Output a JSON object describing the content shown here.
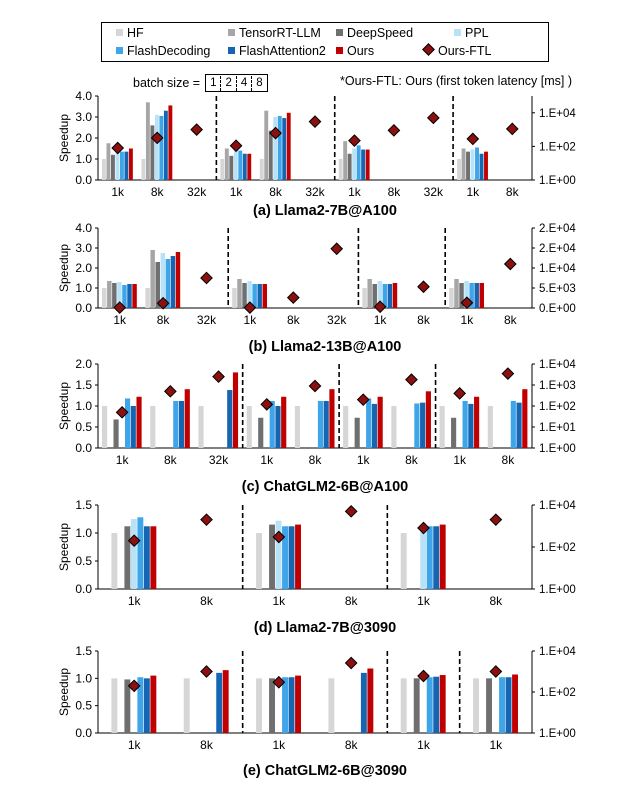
{
  "legend": [
    {
      "name": "HF",
      "color": "#d6d6d6",
      "marker": "square"
    },
    {
      "name": "TensorRT-LLM",
      "color": "#a6a6a6",
      "marker": "square"
    },
    {
      "name": "DeepSpeed",
      "color": "#6f6f6f",
      "marker": "square"
    },
    {
      "name": "PPL",
      "color": "#b8e2f8",
      "marker": "square"
    },
    {
      "name": "FlashDecoding",
      "color": "#3ea5e8",
      "marker": "square"
    },
    {
      "name": "FlashAttention2",
      "color": "#1565b3",
      "marker": "square"
    },
    {
      "name": "Ours",
      "color": "#c00000",
      "marker": "square"
    },
    {
      "name": "Ours-FTL",
      "color": "#8b1010",
      "marker": "diamond"
    }
  ],
  "batch_size": {
    "label": "batch size =",
    "values": [
      "1",
      "2",
      "4",
      "8"
    ]
  },
  "note": "*Ours-FTL: Ours (first token latency [ms] )",
  "chart_data": [
    {
      "type": "bar",
      "title": "(a) Llama2-7B@A100",
      "ylabel": "Speedup",
      "ylim": [
        0,
        4
      ],
      "y_ticks": [
        "0.0",
        "1.0",
        "2.0",
        "3.0",
        "4.0"
      ],
      "y2_scale": "log",
      "y2_range": [
        1,
        100000
      ],
      "y2_ticks": [
        {
          "value": 1,
          "label": "1.E+00"
        },
        {
          "value": 100,
          "label": "1.E+02"
        },
        {
          "value": 10000,
          "label": "1.E+04"
        }
      ],
      "categories": [
        "1k",
        "8k",
        "32k",
        "1k",
        "8k",
        "32k",
        "1k",
        "8k",
        "32k",
        "1k",
        "8k"
      ],
      "group_batch": [
        "1",
        "1",
        "1",
        "2",
        "2",
        "2",
        "4",
        "4",
        "4",
        "8",
        "8"
      ],
      "series": [
        {
          "name": "HF",
          "values": [
            1.0,
            1.0,
            null,
            1.0,
            1.0,
            null,
            1.0,
            null,
            null,
            1.0,
            null
          ]
        },
        {
          "name": "TensorRT-LLM",
          "values": [
            1.75,
            3.7,
            null,
            1.5,
            3.3,
            null,
            1.85,
            null,
            null,
            1.5,
            null
          ]
        },
        {
          "name": "DeepSpeed",
          "values": [
            1.2,
            2.6,
            null,
            1.15,
            2.35,
            null,
            1.25,
            null,
            null,
            1.35,
            null
          ]
        },
        {
          "name": "PPL",
          "values": [
            1.45,
            3.1,
            null,
            1.55,
            3.0,
            null,
            1.5,
            null,
            null,
            1.45,
            null
          ]
        },
        {
          "name": "FlashDecoding",
          "values": [
            1.35,
            3.05,
            null,
            1.4,
            3.05,
            null,
            1.65,
            null,
            null,
            1.55,
            null
          ]
        },
        {
          "name": "FlashAttention2",
          "values": [
            1.35,
            3.3,
            null,
            1.25,
            2.95,
            null,
            1.45,
            null,
            null,
            1.25,
            null
          ]
        },
        {
          "name": "Ours",
          "values": [
            1.5,
            3.55,
            null,
            1.25,
            3.2,
            null,
            1.45,
            null,
            null,
            1.35,
            null
          ]
        },
        {
          "name": "Ours-FTL",
          "axis": "secondary",
          "values": [
            80,
            320,
            1000,
            110,
            620,
            3000,
            220,
            900,
            5000,
            280,
            1100
          ]
        }
      ]
    },
    {
      "type": "bar",
      "title": "(b) Llama2-13B@A100",
      "ylabel": "Speedup",
      "ylim": [
        0,
        4
      ],
      "y_ticks": [
        "0.0",
        "1.0",
        "2.0",
        "3.0",
        "4.0"
      ],
      "y2_scale": "linear",
      "y2_range": [
        0,
        20000
      ],
      "y2_ticks": [
        {
          "value": 0,
          "label": "0.E+00"
        },
        {
          "value": 5000,
          "label": "5.E+03"
        },
        {
          "value": 10000,
          "label": "1.E+04"
        },
        {
          "value": 15000,
          "label": "2.E+04"
        },
        {
          "value": 20000,
          "label": "2.E+04"
        }
      ],
      "categories": [
        "1k",
        "8k",
        "32k",
        "1k",
        "8k",
        "32k",
        "1k",
        "8k",
        "1k",
        "8k"
      ],
      "group_batch": [
        "1",
        "1",
        "1",
        "2",
        "2",
        "2",
        "4",
        "4",
        "8",
        "8"
      ],
      "series": [
        {
          "name": "HF",
          "values": [
            1.0,
            1.0,
            null,
            1.0,
            null,
            null,
            1.0,
            null,
            1.0,
            null
          ]
        },
        {
          "name": "TensorRT-LLM",
          "values": [
            1.35,
            2.9,
            null,
            1.45,
            null,
            null,
            1.45,
            null,
            1.45,
            null
          ]
        },
        {
          "name": "DeepSpeed",
          "values": [
            1.25,
            2.3,
            null,
            1.25,
            null,
            null,
            1.2,
            null,
            1.25,
            null
          ]
        },
        {
          "name": "PPL",
          "values": [
            1.3,
            2.75,
            null,
            1.35,
            null,
            null,
            1.35,
            null,
            1.35,
            null
          ]
        },
        {
          "name": "FlashDecoding",
          "values": [
            1.15,
            2.45,
            null,
            1.2,
            null,
            null,
            1.2,
            null,
            1.25,
            null
          ]
        },
        {
          "name": "FlashAttention2",
          "values": [
            1.2,
            2.6,
            null,
            1.2,
            null,
            null,
            1.2,
            null,
            1.25,
            null
          ]
        },
        {
          "name": "Ours",
          "values": [
            1.2,
            2.8,
            null,
            1.2,
            null,
            null,
            1.25,
            null,
            1.25,
            null
          ]
        },
        {
          "name": "Ours-FTL",
          "axis": "secondary",
          "values": [
            100,
            1200,
            7500,
            100,
            2600,
            14800,
            300,
            5300,
            1300,
            11000
          ]
        }
      ]
    },
    {
      "type": "bar",
      "title": "(c) ChatGLM2-6B@A100",
      "ylabel": "Speedup",
      "ylim": [
        0,
        2
      ],
      "y_ticks": [
        "0.0",
        "0.5",
        "1.0",
        "1.5",
        "2.0"
      ],
      "y2_scale": "log",
      "y2_range": [
        1,
        10000
      ],
      "y2_ticks": [
        {
          "value": 1,
          "label": "1.E+00"
        },
        {
          "value": 10,
          "label": "1.E+01"
        },
        {
          "value": 100,
          "label": "1.E+02"
        },
        {
          "value": 1000,
          "label": "1.E+03"
        },
        {
          "value": 10000,
          "label": "1.E+04"
        }
      ],
      "categories": [
        "1k",
        "8k",
        "32k",
        "1k",
        "8k",
        "1k",
        "8k",
        "1k",
        "8k"
      ],
      "group_batch": [
        "1",
        "1",
        "1",
        "2",
        "2",
        "4",
        "4",
        "8",
        "8"
      ],
      "series": [
        {
          "name": "HF",
          "values": [
            1.0,
            1.0,
            1.0,
            1.0,
            1.0,
            1.0,
            1.0,
            1.0,
            1.0
          ]
        },
        {
          "name": "TensorRT-LLM",
          "values": [
            null,
            null,
            null,
            null,
            null,
            null,
            null,
            null,
            null
          ]
        },
        {
          "name": "DeepSpeed",
          "values": [
            0.68,
            null,
            null,
            0.72,
            null,
            0.72,
            null,
            0.72,
            null
          ]
        },
        {
          "name": "PPL",
          "values": [
            null,
            null,
            null,
            null,
            null,
            null,
            null,
            null,
            null
          ]
        },
        {
          "name": "FlashDecoding",
          "values": [
            1.18,
            1.12,
            null,
            1.12,
            1.12,
            1.18,
            1.06,
            1.12,
            1.12
          ]
        },
        {
          "name": "FlashAttention2",
          "values": [
            1.0,
            1.12,
            1.38,
            1.0,
            1.12,
            1.05,
            1.08,
            1.05,
            1.08
          ]
        },
        {
          "name": "Ours",
          "values": [
            1.22,
            1.4,
            1.8,
            1.22,
            1.4,
            1.22,
            1.35,
            1.22,
            1.4
          ]
        },
        {
          "name": "Ours-FTL",
          "axis": "secondary",
          "values": [
            50,
            500,
            2500,
            120,
            900,
            200,
            1800,
            400,
            3500
          ]
        }
      ]
    },
    {
      "type": "bar",
      "title": "(d) Llama2-7B@3090",
      "ylabel": "Speedup",
      "ylim": [
        0,
        1.5
      ],
      "y_ticks": [
        "0.0",
        "0.5",
        "1.0",
        "1.5"
      ],
      "y2_scale": "log",
      "y2_range": [
        1,
        10000
      ],
      "y2_ticks": [
        {
          "value": 1,
          "label": "1.E+00"
        },
        {
          "value": 100,
          "label": "1.E+02"
        },
        {
          "value": 10000,
          "label": "1.E+04"
        }
      ],
      "categories": [
        "1k",
        "8k",
        "1k",
        "8k",
        "1k",
        "8k"
      ],
      "group_batch": [
        "1",
        "1",
        "2",
        "2",
        "4",
        "4"
      ],
      "series": [
        {
          "name": "HF",
          "values": [
            1.0,
            null,
            1.0,
            null,
            1.0,
            null
          ]
        },
        {
          "name": "TensorRT-LLM",
          "values": [
            null,
            null,
            null,
            null,
            null,
            null
          ]
        },
        {
          "name": "DeepSpeed",
          "values": [
            1.12,
            null,
            1.15,
            null,
            null,
            null
          ]
        },
        {
          "name": "PPL",
          "values": [
            1.25,
            null,
            1.22,
            null,
            1.08,
            null
          ]
        },
        {
          "name": "FlashDecoding",
          "values": [
            1.28,
            null,
            1.12,
            null,
            1.12,
            null
          ]
        },
        {
          "name": "FlashAttention2",
          "values": [
            1.12,
            null,
            1.12,
            null,
            1.12,
            null
          ]
        },
        {
          "name": "Ours",
          "values": [
            1.12,
            null,
            1.15,
            null,
            1.15,
            null
          ]
        },
        {
          "name": "Ours-FTL",
          "axis": "secondary",
          "values": [
            200,
            2000,
            300,
            5000,
            800,
            2000
          ]
        }
      ]
    },
    {
      "type": "bar",
      "title": "(e) ChatGLM2-6B@3090",
      "ylabel": "Speedup",
      "ylim": [
        0,
        1.5
      ],
      "y_ticks": [
        "0.0",
        "0.5",
        "1.0",
        "1.5"
      ],
      "y2_scale": "log",
      "y2_range": [
        1,
        10000
      ],
      "y2_ticks": [
        {
          "value": 1,
          "label": "1.E+00"
        },
        {
          "value": 100,
          "label": "1.E+02"
        },
        {
          "value": 10000,
          "label": "1.E+04"
        }
      ],
      "categories": [
        "1k",
        "8k",
        "1k",
        "8k",
        "1k",
        "1k"
      ],
      "group_batch": [
        "1",
        "1",
        "2",
        "2",
        "4",
        "8"
      ],
      "series": [
        {
          "name": "HF",
          "values": [
            1.0,
            1.0,
            1.0,
            1.0,
            1.0,
            1.0
          ]
        },
        {
          "name": "TensorRT-LLM",
          "values": [
            null,
            null,
            null,
            null,
            null,
            null
          ]
        },
        {
          "name": "DeepSpeed",
          "values": [
            0.98,
            null,
            1.0,
            null,
            1.0,
            1.0
          ]
        },
        {
          "name": "PPL",
          "values": [
            null,
            null,
            null,
            null,
            null,
            null
          ]
        },
        {
          "name": "FlashDecoding",
          "values": [
            1.02,
            null,
            1.02,
            null,
            1.02,
            1.02
          ]
        },
        {
          "name": "FlashAttention2",
          "values": [
            1.0,
            1.1,
            1.02,
            1.1,
            1.03,
            1.02
          ]
        },
        {
          "name": "Ours",
          "values": [
            1.05,
            1.15,
            1.05,
            1.18,
            1.06,
            1.07
          ]
        },
        {
          "name": "Ours-FTL",
          "axis": "secondary",
          "values": [
            200,
            1000,
            300,
            2600,
            600,
            1000
          ]
        }
      ]
    }
  ]
}
